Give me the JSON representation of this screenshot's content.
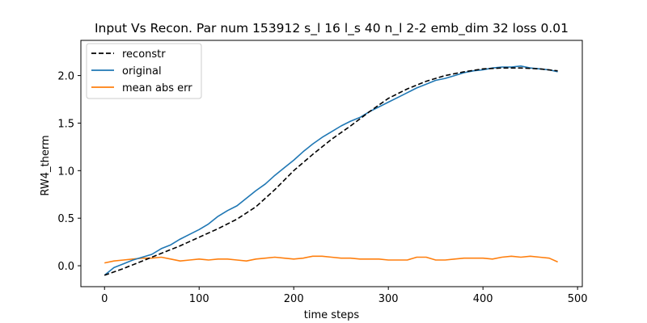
{
  "chart_data": {
    "type": "line",
    "title": "Input Vs Recon. Par num 153912 s_l 16 l_s 40 n_l 2-2 emb_dim 32 loss 0.01",
    "xlabel": "time steps",
    "ylabel": "RW4_therm",
    "xlim": [
      -25,
      505
    ],
    "ylim": [
      -0.22,
      2.37
    ],
    "xticks": [
      0,
      100,
      200,
      300,
      400,
      500
    ],
    "yticks": [
      0.0,
      0.5,
      1.0,
      1.5,
      2.0
    ],
    "xtick_labels": [
      "0",
      "100",
      "200",
      "300",
      "400",
      "500"
    ],
    "ytick_labels": [
      "0.0",
      "0.5",
      "1.0",
      "1.5",
      "2.0"
    ],
    "grid": false,
    "legend_position": "upper-left",
    "series": [
      {
        "name": "reconstr",
        "style": "dashed",
        "color": "#000000",
        "x": [
          0,
          20,
          40,
          60,
          80,
          100,
          120,
          140,
          160,
          180,
          200,
          220,
          240,
          260,
          280,
          300,
          320,
          340,
          360,
          380,
          400,
          420,
          440,
          460,
          479
        ],
        "y": [
          -0.1,
          -0.03,
          0.05,
          0.13,
          0.21,
          0.3,
          0.39,
          0.49,
          0.62,
          0.8,
          1.0,
          1.17,
          1.33,
          1.47,
          1.62,
          1.76,
          1.86,
          1.94,
          2.0,
          2.04,
          2.07,
          2.08,
          2.08,
          2.07,
          2.05
        ]
      },
      {
        "name": "original",
        "style": "solid",
        "color": "#1f77b4",
        "x": [
          0,
          10,
          20,
          30,
          40,
          50,
          60,
          70,
          80,
          90,
          100,
          110,
          120,
          130,
          140,
          150,
          160,
          170,
          180,
          190,
          200,
          210,
          220,
          230,
          240,
          250,
          260,
          270,
          280,
          290,
          300,
          310,
          320,
          330,
          340,
          350,
          360,
          370,
          380,
          390,
          400,
          410,
          420,
          430,
          440,
          450,
          460,
          470,
          479
        ],
        "y": [
          -0.1,
          -0.02,
          0.02,
          0.06,
          0.09,
          0.12,
          0.18,
          0.22,
          0.28,
          0.33,
          0.38,
          0.44,
          0.52,
          0.58,
          0.63,
          0.71,
          0.79,
          0.86,
          0.95,
          1.03,
          1.11,
          1.2,
          1.28,
          1.35,
          1.41,
          1.47,
          1.52,
          1.56,
          1.62,
          1.67,
          1.72,
          1.77,
          1.82,
          1.87,
          1.91,
          1.95,
          1.97,
          2.0,
          2.03,
          2.05,
          2.06,
          2.08,
          2.09,
          2.09,
          2.1,
          2.08,
          2.07,
          2.06,
          2.04
        ]
      },
      {
        "name": "mean abs err",
        "style": "solid",
        "color": "#ff7f0e",
        "x": [
          0,
          10,
          20,
          30,
          40,
          50,
          60,
          70,
          80,
          90,
          100,
          110,
          120,
          130,
          140,
          150,
          160,
          170,
          180,
          190,
          200,
          210,
          220,
          230,
          240,
          250,
          260,
          270,
          280,
          290,
          300,
          310,
          320,
          330,
          340,
          350,
          360,
          370,
          380,
          390,
          400,
          410,
          420,
          430,
          440,
          450,
          460,
          470,
          479
        ],
        "y": [
          0.03,
          0.05,
          0.06,
          0.07,
          0.08,
          0.08,
          0.09,
          0.07,
          0.05,
          0.06,
          0.07,
          0.06,
          0.07,
          0.07,
          0.06,
          0.05,
          0.07,
          0.08,
          0.09,
          0.08,
          0.07,
          0.08,
          0.1,
          0.1,
          0.09,
          0.08,
          0.08,
          0.07,
          0.07,
          0.07,
          0.06,
          0.06,
          0.06,
          0.09,
          0.09,
          0.06,
          0.06,
          0.07,
          0.08,
          0.08,
          0.08,
          0.07,
          0.09,
          0.1,
          0.09,
          0.1,
          0.09,
          0.08,
          0.04
        ]
      }
    ]
  }
}
